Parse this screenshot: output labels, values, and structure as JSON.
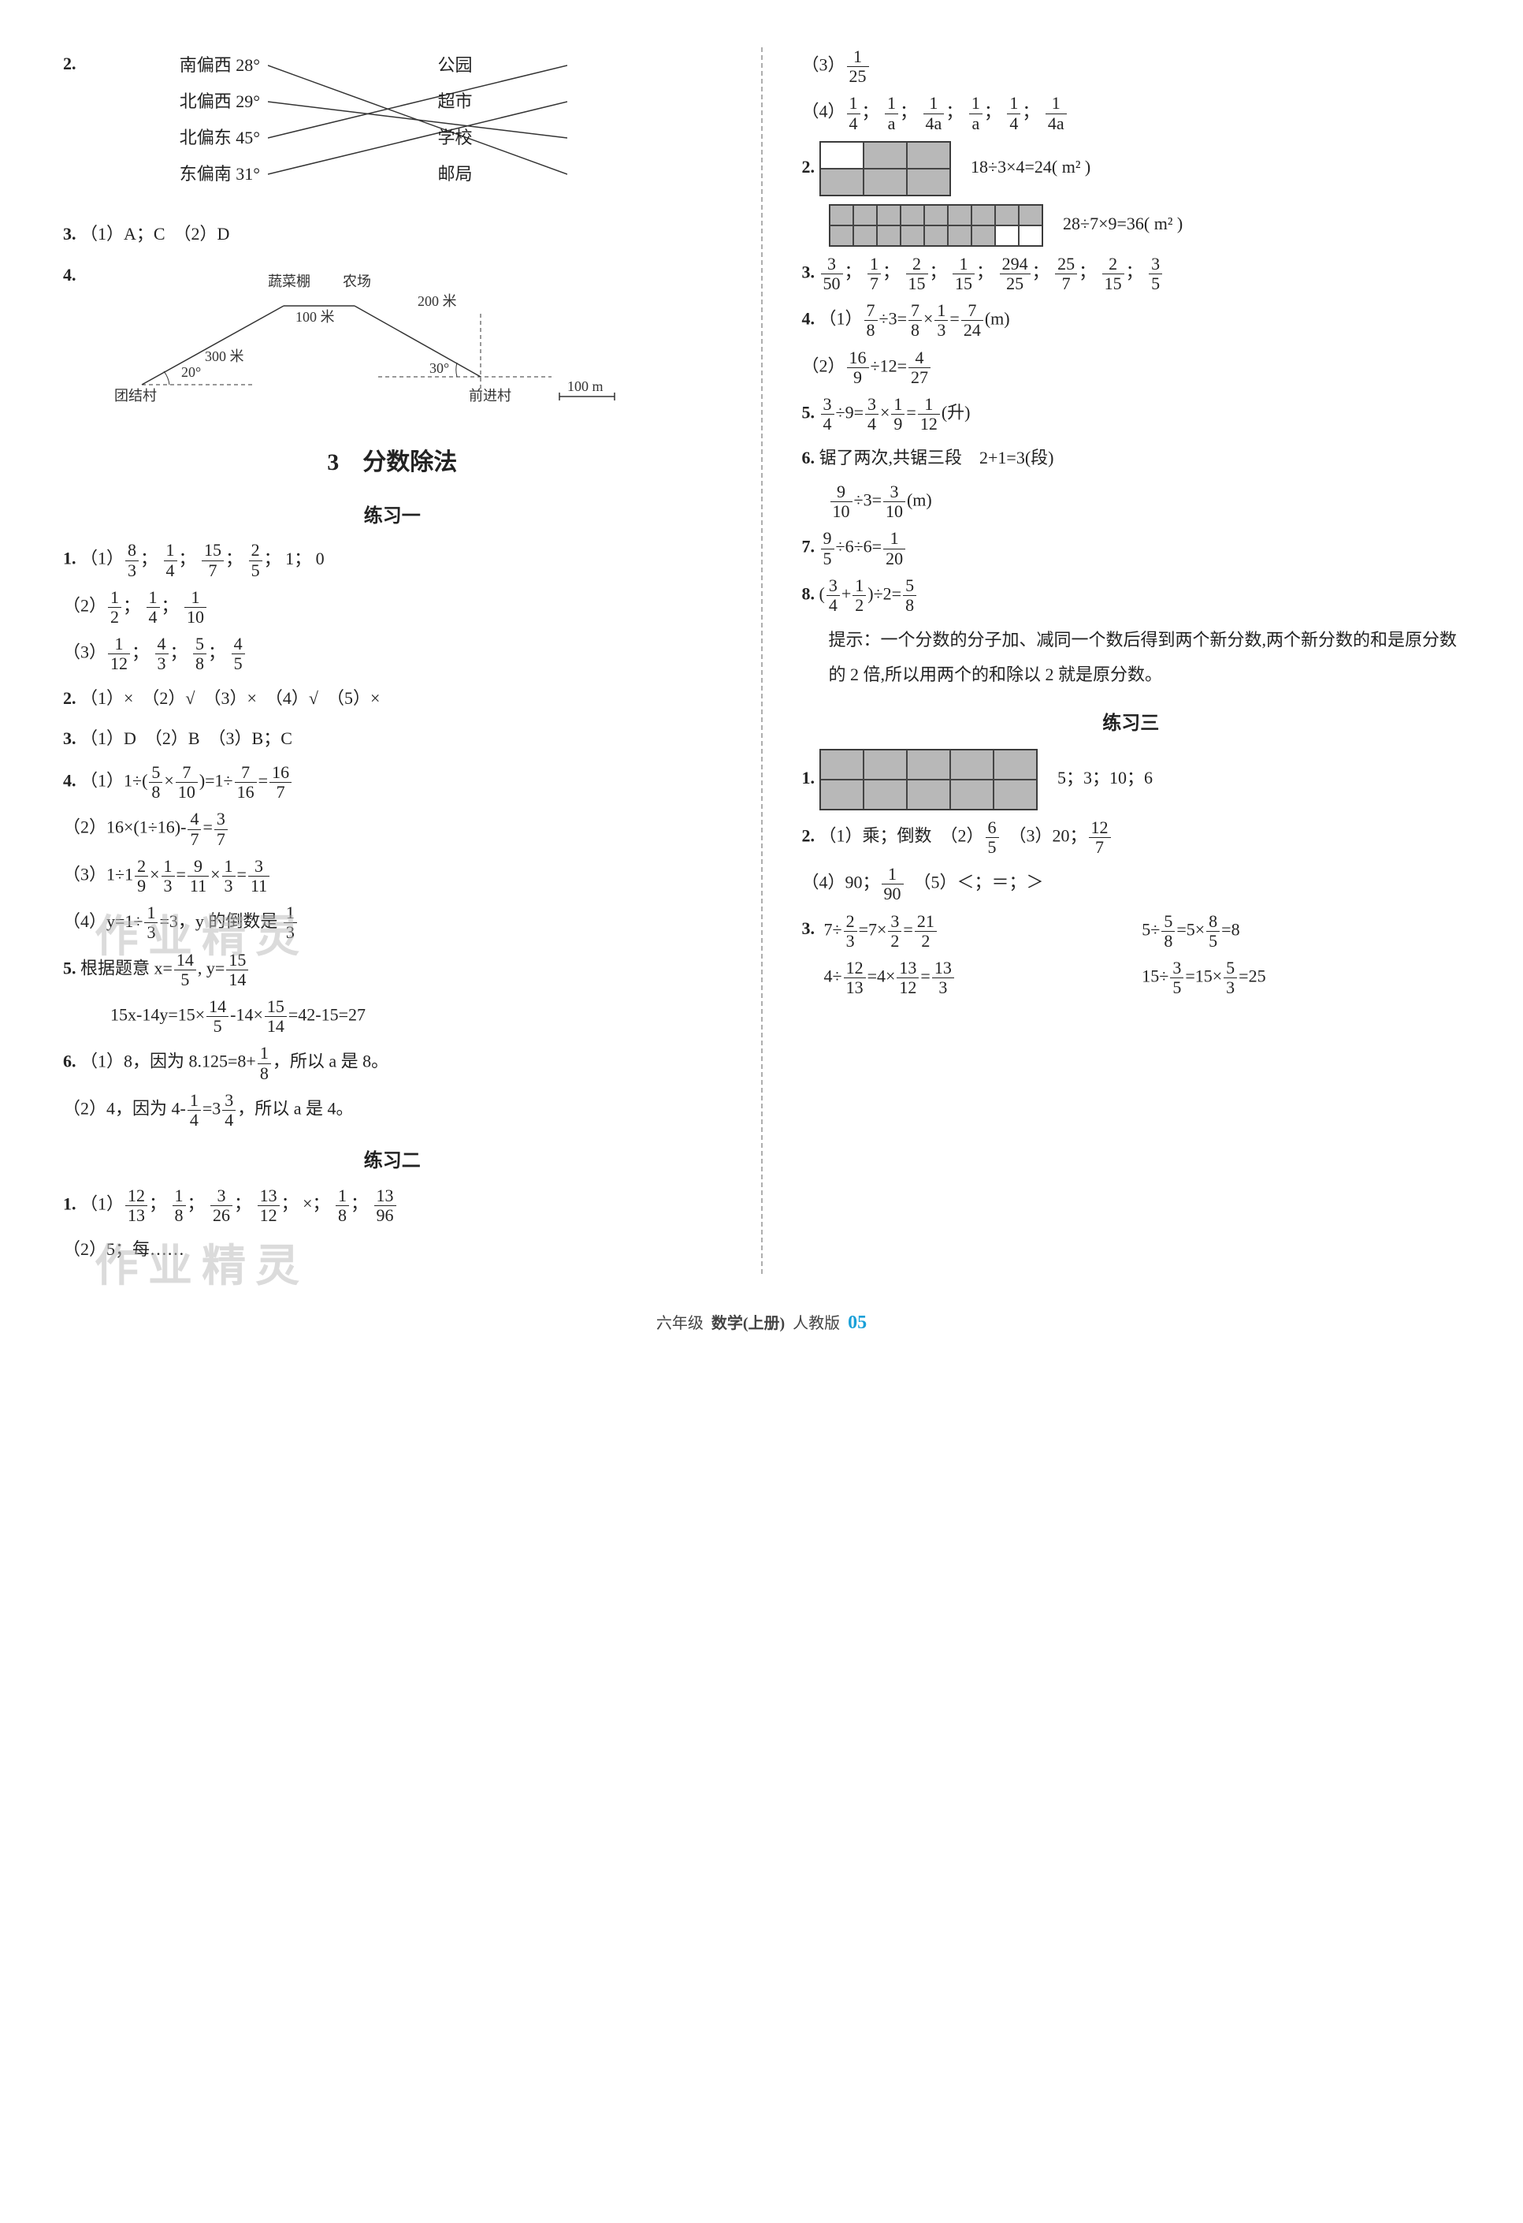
{
  "q2": {
    "left": [
      "南偏西 28°",
      "北偏西 29°",
      "北偏东 45°",
      "东偏南 31°"
    ],
    "right": [
      "公园",
      "超市",
      "学校",
      "邮局"
    ],
    "lines": [
      [
        0,
        3
      ],
      [
        1,
        2
      ],
      [
        2,
        0
      ],
      [
        3,
        1
      ]
    ]
  },
  "q3": {
    "text": "（1）A；C　（2）D"
  },
  "q4": {
    "labels": {
      "shed": "蔬菜棚",
      "farm": "农场",
      "tuanjie": "团结村",
      "qianjin": "前进村",
      "d300": "300 米",
      "d100": "100 米",
      "d200": "200 米",
      "a20": "20°",
      "a30": "30°",
      "scale": "100 m"
    }
  },
  "section3": {
    "title": "3　分数除法"
  },
  "ex1": {
    "title": "练习一",
    "l1_1": [
      [
        "8",
        "3"
      ],
      [
        "1",
        "4"
      ],
      [
        "15",
        "7"
      ],
      [
        "2",
        "5"
      ],
      "1",
      "0"
    ],
    "l1_2": [
      [
        "1",
        "2"
      ],
      [
        "1",
        "4"
      ],
      [
        "1",
        "10"
      ]
    ],
    "l1_3": [
      [
        "1",
        "12"
      ],
      [
        "4",
        "3"
      ],
      [
        "5",
        "8"
      ],
      [
        "4",
        "5"
      ]
    ],
    "l2": "（1）×　（2）√　（3）×　（4）√　（5）×",
    "l3": "（1）D　（2）B　（3）B；C",
    "l4_1": {
      "a": [
        "5",
        "8"
      ],
      "b": [
        "7",
        "10"
      ],
      "c": [
        "7",
        "16"
      ],
      "d": [
        "16",
        "7"
      ]
    },
    "l4_2": {
      "a": [
        "4",
        "7"
      ],
      "b": [
        "3",
        "7"
      ]
    },
    "l4_3": {
      "a": [
        "2",
        "9"
      ],
      "b": [
        "1",
        "3"
      ],
      "c": [
        "9",
        "11"
      ],
      "d": [
        "1",
        "3"
      ],
      "e": [
        "3",
        "11"
      ]
    },
    "l4_4": {
      "text": "y=1÷1/3=3，y 的倒数是 1/3"
    },
    "l5": {
      "x": [
        "14",
        "5"
      ],
      "y": [
        "15",
        "14"
      ],
      "res": "42-15=27"
    },
    "l6_1": {
      "pre": "8，因为 8.125=8+",
      "f": [
        "1",
        "8"
      ],
      "post": "，所以 a 是 8。"
    },
    "l6_2": {
      "pre": "4，因为 4-",
      "f": [
        "1",
        "4"
      ],
      "mid": "=3",
      "g": [
        "3",
        "4"
      ],
      "post": "，所以 a 是 4。"
    }
  },
  "ex2": {
    "title": "练习二",
    "l1_1": [
      [
        "12",
        "13"
      ],
      [
        "1",
        "8"
      ],
      [
        "3",
        "26"
      ],
      [
        "13",
        "12"
      ],
      "×",
      [
        "1",
        "8"
      ],
      [
        "13",
        "96"
      ]
    ],
    "l1_2": "5；每……",
    "l1_3": [
      "1",
      "25"
    ],
    "l1_4": [
      [
        "1",
        "4"
      ],
      [
        "1",
        "a"
      ],
      [
        "1",
        "4a"
      ],
      [
        "1",
        "a"
      ],
      [
        "1",
        "4"
      ],
      [
        "1",
        "4a"
      ]
    ],
    "g1": {
      "rows": [
        [
          0,
          1,
          1
        ],
        [
          1,
          1,
          1
        ]
      ],
      "cellW": 55,
      "cellH": 34,
      "eq": "18÷3×4=24( m² )"
    },
    "g2": {
      "rows": [
        [
          1,
          1,
          1,
          1,
          1,
          1,
          1,
          1,
          1
        ],
        [
          1,
          1,
          1,
          1,
          1,
          1,
          1,
          0,
          0
        ]
      ],
      "cellW": 30,
      "cellH": 26,
      "eq": "28÷7×9=36( m² )"
    },
    "l3": [
      [
        "3",
        "50"
      ],
      [
        "1",
        "7"
      ],
      [
        "2",
        "15"
      ],
      [
        "1",
        "15"
      ],
      [
        "294",
        "25"
      ],
      [
        "25",
        "7"
      ],
      [
        "2",
        "15"
      ],
      [
        "3",
        "5"
      ]
    ],
    "l4_1": {
      "a": [
        "7",
        "8"
      ],
      "b": [
        "7",
        "8"
      ],
      "c": [
        "1",
        "3"
      ],
      "d": [
        "7",
        "24"
      ]
    },
    "l4_2": {
      "a": [
        "16",
        "9"
      ],
      "b": [
        "4",
        "27"
      ]
    },
    "l5": {
      "a": [
        "3",
        "4"
      ],
      "b": [
        "3",
        "4"
      ],
      "c": [
        "1",
        "9"
      ],
      "d": [
        "1",
        "12"
      ],
      "unit": "(升)"
    },
    "l6": {
      "text": "锯了两次,共锯三段　2+1=3(段)",
      "a": [
        "9",
        "10"
      ],
      "b": [
        "3",
        "10"
      ]
    },
    "l7": {
      "a": [
        "9",
        "5"
      ],
      "b": [
        "1",
        "20"
      ]
    },
    "l8": {
      "a": [
        "3",
        "4"
      ],
      "b": [
        "1",
        "2"
      ],
      "c": [
        "5",
        "8"
      ],
      "hint": "提示：一个分数的分子加、减同一个数后得到两个新分数,两个新分数的和是原分数的 2 倍,所以用两个的和除以 2 就是原分数。"
    }
  },
  "ex3": {
    "title": "练习三",
    "g": {
      "rows": [
        [
          1,
          1,
          1,
          1,
          1
        ],
        [
          1,
          1,
          1,
          1,
          1
        ]
      ],
      "cellW": 55,
      "cellH": 38,
      "ans": "5；3；10；6"
    },
    "l2": {
      "t1": "（1）乘；倒数　（2）",
      "f1": [
        "6",
        "5"
      ],
      "t2": "　（3）20；",
      "f2": [
        "12",
        "7"
      ]
    },
    "l2_4": {
      "t": "（4）90；",
      "f": [
        "1",
        "90"
      ],
      "t2": "　（5）＜；＝；＞"
    },
    "l3": {
      "r1a": {
        "a": [
          "2",
          "3"
        ],
        "b": [
          "3",
          "2"
        ],
        "c": [
          "21",
          "2"
        ]
      },
      "r1b": {
        "a": [
          "5",
          "8"
        ],
        "b": [
          "8",
          "5"
        ]
      },
      "r2a": {
        "a": [
          "12",
          "13"
        ],
        "b": [
          "13",
          "12"
        ],
        "c": [
          "13",
          "3"
        ]
      },
      "r2b": {
        "a": [
          "3",
          "5"
        ],
        "b": [
          "5",
          "3"
        ]
      }
    }
  },
  "footer": {
    "grade": "六年级",
    "subject": "数学(上册)",
    "ver": "人教版",
    "page": "05"
  },
  "watermark": "作业精灵"
}
